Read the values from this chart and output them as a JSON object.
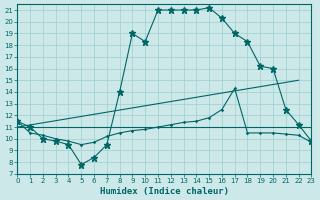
{
  "xlabel": "Humidex (Indice chaleur)",
  "bg_color": "#cde8e8",
  "grid_color": "#9ecece",
  "line_color": "#006666",
  "xlim": [
    0,
    23
  ],
  "ylim": [
    7,
    21.5
  ],
  "yticks": [
    7,
    8,
    9,
    10,
    11,
    12,
    13,
    14,
    15,
    16,
    17,
    18,
    19,
    20,
    21
  ],
  "xticks": [
    0,
    1,
    2,
    3,
    4,
    5,
    6,
    7,
    8,
    9,
    10,
    11,
    12,
    13,
    14,
    15,
    16,
    17,
    18,
    19,
    20,
    21,
    22,
    23
  ],
  "main_x": [
    0,
    1,
    2,
    3,
    4,
    5,
    6,
    7,
    8,
    9,
    10,
    11,
    12,
    13,
    14,
    15,
    16,
    17,
    18,
    19,
    20,
    21,
    22,
    23
  ],
  "main_y": [
    11.5,
    11.0,
    10.0,
    9.8,
    9.5,
    7.8,
    8.4,
    9.5,
    14.0,
    19.0,
    18.3,
    21.0,
    21.0,
    21.0,
    21.0,
    21.2,
    20.3,
    19.0,
    18.3,
    16.2,
    16.0,
    12.5,
    11.2,
    9.8
  ],
  "line1_x": [
    0,
    22
  ],
  "line1_y": [
    11.0,
    15.0
  ],
  "line2_x": [
    0,
    23
  ],
  "line2_y": [
    11.0,
    11.0
  ],
  "bottom_x": [
    0,
    1,
    2,
    3,
    4,
    5,
    6,
    7,
    8,
    9,
    10,
    11,
    12,
    13,
    14,
    15,
    16,
    17,
    18,
    19,
    20,
    21,
    22,
    23
  ],
  "bottom_y": [
    11.5,
    10.5,
    10.3,
    10.0,
    9.8,
    9.5,
    9.7,
    10.2,
    10.5,
    10.7,
    10.8,
    11.0,
    11.2,
    11.4,
    11.5,
    11.8,
    12.5,
    14.3,
    10.5,
    10.5,
    10.5,
    10.4,
    10.3,
    9.7
  ]
}
